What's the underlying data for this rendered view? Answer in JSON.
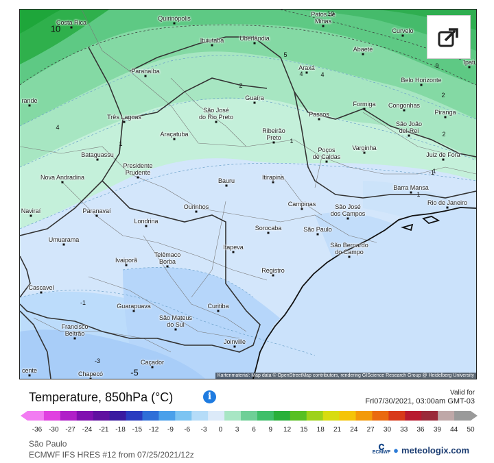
{
  "legend": {
    "title": "Temperature, 850hPa (°C)",
    "valid_label": "Valid for",
    "valid_time": "Fri07/30/2021, 03:00am GMT-03",
    "ticks": [
      "-36",
      "-30",
      "-27",
      "-24",
      "-21",
      "-18",
      "-15",
      "-12",
      "-9",
      "-6",
      "-3",
      "0",
      "3",
      "6",
      "9",
      "12",
      "15",
      "18",
      "21",
      "24",
      "27",
      "30",
      "33",
      "36",
      "39",
      "44",
      "50"
    ],
    "color_stops": [
      "#f27cf2",
      "#e040e0",
      "#b020c8",
      "#8010b0",
      "#6010a0",
      "#3a1aa0",
      "#2a3cc0",
      "#2f6fd8",
      "#4aa0ea",
      "#7cc4f2",
      "#b5dcf8",
      "#dceaf9",
      "#a8e6c4",
      "#6fcf97",
      "#3fbf6a",
      "#29b03a",
      "#58c022",
      "#9ed21a",
      "#d8dc10",
      "#f5c408",
      "#f39a0a",
      "#ea6a10",
      "#d83a1a",
      "#b81a30",
      "#9a2a3a",
      "#bfa8a8",
      "#9a9a9a"
    ]
  },
  "footer": {
    "region": "São Paulo",
    "model": "ECMWF IFS HRES #12 from 07/25/2021/12z",
    "ecmwf_label": "ECMWF",
    "brand": "meteologix.com"
  },
  "map": {
    "attribution": "Kartenmaterial: Map data © OpenStreetMap contributors, rendering GIScience Research Group @ Heidelberg University",
    "share_icon": "share-icon",
    "cities": [
      {
        "name": "Costa Rica"
      },
      {
        "name": "Quirinópolis"
      },
      {
        "name": "Patos de\nMinas"
      },
      {
        "name": "Curvelo"
      },
      {
        "name": "Ituiutaba"
      },
      {
        "name": "Uberlândia"
      },
      {
        "name": "Abaeté"
      },
      {
        "name": "Ipati"
      },
      {
        "name": "Paranaíba"
      },
      {
        "name": "Araxá"
      },
      {
        "name": "Belo Horizonte"
      },
      {
        "name": "Guaíra"
      },
      {
        "name": "Formiga"
      },
      {
        "name": "Congonhas"
      },
      {
        "name": "rande"
      },
      {
        "name": "São José\ndo Rio Preto"
      },
      {
        "name": "Três Lagoas"
      },
      {
        "name": "Passos"
      },
      {
        "name": "São João\ndel-Rei"
      },
      {
        "name": "Piranga"
      },
      {
        "name": "Ribeirão\nPreto"
      },
      {
        "name": "Araçatuba"
      },
      {
        "name": "Varginha"
      },
      {
        "name": "Poços\nde Caldas"
      },
      {
        "name": "Juiz de Fora"
      },
      {
        "name": "Bataguassu"
      },
      {
        "name": "Presidente\nPrudente"
      },
      {
        "name": "Nova Andradina"
      },
      {
        "name": "Bauru"
      },
      {
        "name": "Itirapina"
      },
      {
        "name": "Barra Mansa"
      },
      {
        "name": "Rio de Janeiro"
      },
      {
        "name": "Naviraí"
      },
      {
        "name": "Paranavaí"
      },
      {
        "name": "Ourinhos"
      },
      {
        "name": "Campinas"
      },
      {
        "name": "São José\ndos Campos"
      },
      {
        "name": "Londrina"
      },
      {
        "name": "Sorocaba"
      },
      {
        "name": "São Paulo"
      },
      {
        "name": "Umuarama"
      },
      {
        "name": "Itapeva"
      },
      {
        "name": "São Bernardo\ndo Campo"
      },
      {
        "name": "Ivaiporã"
      },
      {
        "name": "Telêmaco\nBorba"
      },
      {
        "name": "Registro"
      },
      {
        "name": "Cascavel"
      },
      {
        "name": "Guarapuava"
      },
      {
        "name": "Curitiba"
      },
      {
        "name": "Francisco\nBeltrão"
      },
      {
        "name": "São Mateus\ndo Sul"
      },
      {
        "name": "Joinville"
      },
      {
        "name": "Caçador"
      },
      {
        "name": "Chapecó"
      },
      {
        "name": "cente"
      }
    ],
    "isolines": [
      "10",
      "10",
      "9",
      "5",
      "4",
      "4",
      "2",
      "2",
      "4",
      "1",
      "1",
      "2",
      "1",
      "1",
      "-1",
      "-1",
      "-3",
      "-5"
    ]
  }
}
